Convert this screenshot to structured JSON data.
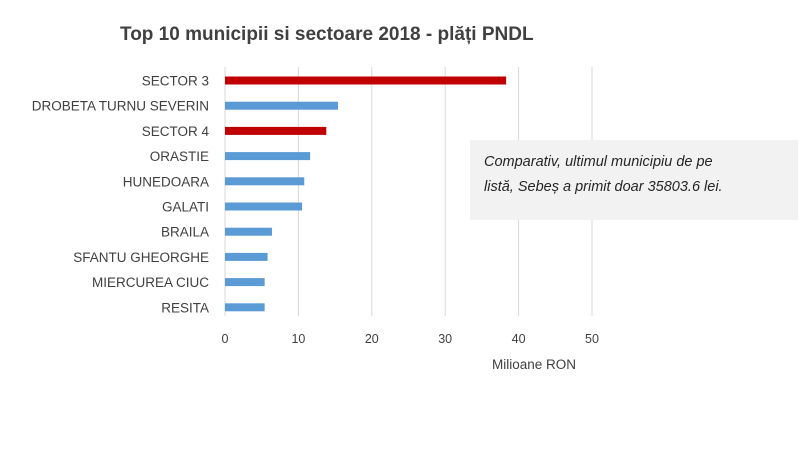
{
  "chart_data": {
    "type": "bar",
    "orientation": "horizontal",
    "title": "Top 10 municipii si sectoare 2018 - plăți PNDL",
    "xlabel": "Milioane RON",
    "ylabel": "",
    "xlim": [
      0,
      50
    ],
    "xticks": [
      0,
      10,
      20,
      30,
      40,
      50
    ],
    "grid": true,
    "categories": [
      "SECTOR 3",
      "DROBETA TURNU SEVERIN",
      "SECTOR 4",
      "ORASTIE",
      "HUNEDOARA",
      "GALATI",
      "BRAILA",
      "SFANTU GHEORGHE",
      "MIERCUREA CIUC",
      "RESITA"
    ],
    "values": [
      38.3,
      15.4,
      13.8,
      11.6,
      10.8,
      10.5,
      6.4,
      5.8,
      5.4,
      5.4
    ],
    "bar_colors": [
      "#c00000",
      "#5b9bd5",
      "#c00000",
      "#5b9bd5",
      "#5b9bd5",
      "#5b9bd5",
      "#5b9bd5",
      "#5b9bd5",
      "#5b9bd5",
      "#5b9bd5"
    ],
    "annotations": [
      "Comparativ, ultimul municipiu de pe listă, Sebeș a primit doar 35803.6 lei."
    ]
  },
  "note": {
    "line1": "Comparativ, ultimul municipiu de pe",
    "line2": "listă, Sebeș a primit doar 35803.6 lei."
  }
}
